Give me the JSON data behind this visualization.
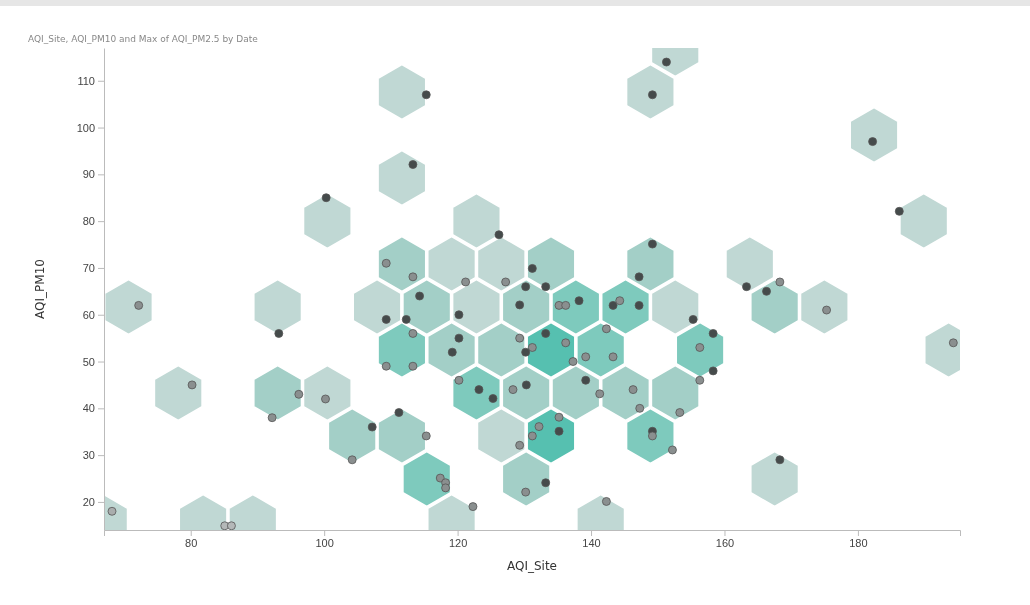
{
  "chart_data": {
    "type": "scatter",
    "title": "AQI_Site, AQI_PM10 and Max of AQI_PM2.5 by Date",
    "xlabel": "AQI_Site",
    "ylabel": "AQI_PM10",
    "xlim": [
      67,
      195.3
    ],
    "ylim": [
      14,
      117
    ],
    "xticks": [
      80,
      100,
      120,
      140,
      160,
      180
    ],
    "yticks": [
      20,
      30,
      40,
      50,
      60,
      70,
      80,
      90,
      100,
      110
    ],
    "grid": false,
    "marker": "circle",
    "series": [
      {
        "type": "scatter",
        "x": [
          131.2,
          113.3,
          121.2,
          127.2,
          130.2,
          133.2,
          147.2,
          114.3,
          129.3,
          135.2,
          136.2,
          138.2,
          143.3,
          144.3,
          147.2,
          120.2,
          109.3,
          112.3,
          155.3,
          113.3,
          120.2,
          133.2,
          129.3,
          136.2,
          142.3,
          131.2,
          130.2,
          119.2,
          156.3,
          137.3,
          139.2,
          143.3,
          109.3,
          113.3,
          120.2,
          139.2,
          156.3,
          123.2,
          125.3,
          128.3,
          130.3,
          141.3,
          146.3,
          147.3,
          153.3,
          135.2,
          132.2,
          135.2,
          131.2,
          149.2,
          149.2,
          152.2,
          129.3,
          111.2,
          115.3,
          117.4,
          118.2,
          118.2,
          122.3,
          133.2,
          130.2,
          142.3,
          115.3,
          113.3,
          151.3,
          149.2,
          126.2,
          149.2,
          109.3,
          182.2,
          186.2,
          163.3,
          166.3,
          168.3,
          175.3,
          194.3,
          158.3,
          158.3,
          168.3,
          72.2,
          93.2,
          80.2,
          96.2,
          100.2,
          92.2,
          107.2,
          104.2,
          68.2,
          85.1,
          86.1,
          100.3
        ],
        "values": [
          69.9,
          68.1,
          67.0,
          67.0,
          66.0,
          66.0,
          68.1,
          64.0,
          62.1,
          62.0,
          62.0,
          63.0,
          62.0,
          63.0,
          62.0,
          60.0,
          59.0,
          59.0,
          59.0,
          56.0,
          55.0,
          56.0,
          55.0,
          54.0,
          57.0,
          53.0,
          52.0,
          52.0,
          53.0,
          50.0,
          51.0,
          51.0,
          49.0,
          49.0,
          46.0,
          46.0,
          46.0,
          44.0,
          42.1,
          44.0,
          45.0,
          43.1,
          44.0,
          40.0,
          39.1,
          38.1,
          36.1,
          35.1,
          34.1,
          35.1,
          34.1,
          31.1,
          32.1,
          39.1,
          34.1,
          25.1,
          24.1,
          23.0,
          19.0,
          24.1,
          22.1,
          20.1,
          107.0,
          92.1,
          114.0,
          107.0,
          77.1,
          75.1,
          71.0,
          97.0,
          82.1,
          66.0,
          65.0,
          67.0,
          61.0,
          54.0,
          56.0,
          48.0,
          29.0,
          62.0,
          56.0,
          45.0,
          43.0,
          42.0,
          38.0,
          36.0,
          29.0,
          18.0,
          14.9,
          14.9,
          85.0
        ],
        "colors": [
          "#454b4b",
          "#8a8f8f",
          "#8a8f8f",
          "#8a8f8f",
          "#454b4b",
          "#454b4b",
          "#454b4b",
          "#454b4b",
          "#454b4b",
          "#8a8f8f",
          "#8a8f8f",
          "#454b4b",
          "#454b4b",
          "#8a8f8f",
          "#454b4b",
          "#454b4b",
          "#454b4b",
          "#454b4b",
          "#454b4b",
          "#8a8f8f",
          "#454b4b",
          "#454b4b",
          "#8a8f8f",
          "#8a8f8f",
          "#8a8f8f",
          "#8a8f8f",
          "#454b4b",
          "#454b4b",
          "#8a8f8f",
          "#8a8f8f",
          "#8a8f8f",
          "#8a8f8f",
          "#8a8f8f",
          "#8a8f8f",
          "#8a8f8f",
          "#454b4b",
          "#8a8f8f",
          "#454b4b",
          "#454b4b",
          "#8a8f8f",
          "#454b4b",
          "#8a8f8f",
          "#8a8f8f",
          "#8a8f8f",
          "#8a8f8f",
          "#8a8f8f",
          "#8a8f8f",
          "#454b4b",
          "#8a8f8f",
          "#454b4b",
          "#8a8f8f",
          "#8a8f8f",
          "#8a8f8f",
          "#454b4b",
          "#8a8f8f",
          "#8a8f8f",
          "#8a8f8f",
          "#8a8f8f",
          "#8a8f8f",
          "#454b4b",
          "#8a8f8f",
          "#8a8f8f",
          "#454b4b",
          "#454b4b",
          "#454b4b",
          "#454b4b",
          "#454b4b",
          "#454b4b",
          "#8a8f8f",
          "#454b4b",
          "#454b4b",
          "#454b4b",
          "#454b4b",
          "#8a8f8f",
          "#8a8f8f",
          "#8a8f8f",
          "#454b4b",
          "#454b4b",
          "#454b4b",
          "#8a8f8f",
          "#454b4b",
          "#8a8f8f",
          "#8a8f8f",
          "#8a8f8f",
          "#8a8f8f",
          "#454b4b",
          "#8a8f8f",
          "#a9adad",
          "#b4b8b8",
          "#b4b8b8",
          "#454b4b"
        ]
      }
    ]
  }
}
